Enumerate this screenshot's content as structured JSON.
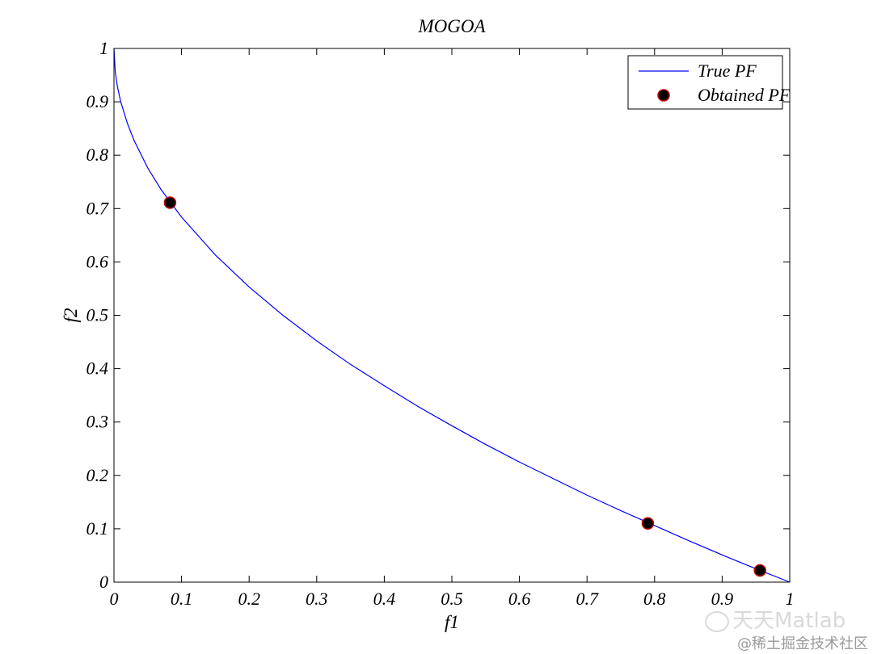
{
  "chart_data": {
    "type": "line",
    "title": "MOGOA",
    "xlabel": "f1",
    "ylabel": "f2",
    "xlim": [
      0,
      1
    ],
    "ylim": [
      0,
      1
    ],
    "xticks": [
      "0",
      "0.1",
      "0.2",
      "0.3",
      "0.4",
      "0.5",
      "0.6",
      "0.7",
      "0.8",
      "0.9",
      "1"
    ],
    "yticks": [
      "0",
      "0.1",
      "0.2",
      "0.3",
      "0.4",
      "0.5",
      "0.6",
      "0.7",
      "0.8",
      "0.9",
      "1"
    ],
    "grid": false,
    "legend_position": "top-right",
    "series": [
      {
        "name": "True PF",
        "style": "line",
        "color": "#0000ff",
        "x": [
          0,
          0.002,
          0.005,
          0.01,
          0.02,
          0.03,
          0.05,
          0.07,
          0.1,
          0.15,
          0.2,
          0.25,
          0.3,
          0.35,
          0.4,
          0.45,
          0.5,
          0.55,
          0.6,
          0.65,
          0.7,
          0.75,
          0.8,
          0.85,
          0.9,
          0.95,
          1
        ],
        "y": [
          1,
          0.955,
          0.929,
          0.9,
          0.859,
          0.827,
          0.776,
          0.735,
          0.684,
          0.613,
          0.553,
          0.5,
          0.452,
          0.408,
          0.368,
          0.329,
          0.293,
          0.258,
          0.225,
          0.194,
          0.163,
          0.134,
          0.106,
          0.078,
          0.051,
          0.025,
          0
        ]
      },
      {
        "name": "Obtained PF",
        "style": "scatter",
        "color": "#000000",
        "edge_color": "#c00000",
        "x": [
          0.083,
          0.79,
          0.956
        ],
        "y": [
          0.711,
          0.11,
          0.022
        ]
      }
    ]
  },
  "watermark": {
    "line1": "天天Matlab",
    "line2": "@稀土掘金技术社区"
  }
}
